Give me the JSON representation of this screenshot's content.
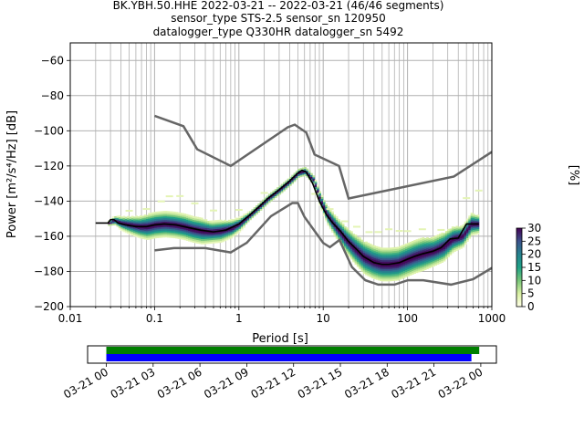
{
  "title_lines": [
    "BK.YBH.50.HHE   2022-03-21 -- 2022-03-21  (46/46 segments)",
    "sensor_type STS-2.5 sensor_sn 120950",
    "datalogger_type Q330HR datalogger_sn 5492"
  ],
  "chart_data": [
    {
      "type": "heatmap",
      "xlabel": "Period [s]",
      "ylabel": "Power [m²/s⁴/Hz] [dB]",
      "xscale": "log",
      "xlim": [
        0.01,
        1000
      ],
      "ylim": [
        -200,
        -50
      ],
      "xticks": [
        {
          "v": 0.01,
          "label": "0.01"
        },
        {
          "v": 0.1,
          "label": "0.1"
        },
        {
          "v": 1,
          "label": "1"
        },
        {
          "v": 10,
          "label": "10"
        },
        {
          "v": 100,
          "label": "100"
        },
        {
          "v": 1000,
          "label": "1000"
        }
      ],
      "yticks": [
        {
          "v": -60,
          "label": "−60"
        },
        {
          "v": -80,
          "label": "−80"
        },
        {
          "v": -100,
          "label": "−100"
        },
        {
          "v": -120,
          "label": "−120"
        },
        {
          "v": -140,
          "label": "−140"
        },
        {
          "v": -160,
          "label": "−160"
        },
        {
          "v": -180,
          "label": "−180"
        },
        {
          "v": -200,
          "label": "−200"
        }
      ],
      "grid": true,
      "colors": {
        "noise_model": "#666666",
        "mode": "#000000",
        "grid": "#b0b0b0"
      },
      "noise_models": [
        {
          "name": "high",
          "x": [
            0.1,
            0.22,
            0.32,
            0.8,
            3.8,
            4.6,
            6.3,
            7.9,
            15.4,
            20,
            354.8,
            1000
          ],
          "y": [
            -91.5,
            -97.4,
            -110.5,
            -120,
            -98,
            -96.5,
            -101,
            -113.5,
            -120,
            -138.5,
            -126,
            -112
          ]
        },
        {
          "name": "low",
          "x": [
            0.1,
            0.17,
            0.4,
            0.8,
            1.24,
            2.4,
            4.3,
            5,
            6,
            10,
            12,
            15.6,
            21.9,
            31.6,
            45,
            70,
            101,
            154,
            328,
            600,
            1000
          ],
          "y": [
            -168,
            -166.7,
            -166.7,
            -169.2,
            -163.7,
            -148.6,
            -141.1,
            -141.1,
            -149,
            -163.8,
            -166.2,
            -162.1,
            -177.5,
            -185,
            -187.5,
            -187.5,
            -185,
            -185,
            -187.5,
            -184.4,
            -178
          ]
        }
      ],
      "mode": {
        "x": [
          0.02,
          0.028,
          0.03,
          0.033,
          0.037,
          0.045,
          0.06,
          0.08,
          0.1,
          0.13,
          0.18,
          0.25,
          0.35,
          0.5,
          0.7,
          1,
          1.3,
          1.7,
          2.2,
          3,
          4,
          5,
          5.6,
          6.3,
          7.5,
          9,
          11,
          13,
          16,
          20,
          25,
          30,
          40,
          50,
          60,
          80,
          100,
          120,
          150,
          200,
          250,
          320,
          400,
          500,
          700
        ],
        "y": [
          -152.5,
          -152.5,
          -150.5,
          -150.5,
          -152.5,
          -153.5,
          -154.5,
          -154.5,
          -153.5,
          -153,
          -153.5,
          -155,
          -156.5,
          -157.5,
          -156.5,
          -153,
          -148.5,
          -143.5,
          -138.5,
          -133.5,
          -128.5,
          -124,
          -122.5,
          -123.5,
          -130,
          -140,
          -148,
          -152.5,
          -157,
          -163,
          -167.5,
          -171.5,
          -175,
          -176,
          -176,
          -175,
          -173,
          -171.5,
          -170,
          -168.5,
          -166.5,
          -161.5,
          -161,
          -153,
          -153
        ]
      },
      "density": {
        "x": [
          0.028,
          0.033,
          0.04,
          0.05,
          0.065,
          0.08,
          0.1,
          0.13,
          0.17,
          0.22,
          0.28,
          0.36,
          0.46,
          0.6,
          0.8,
          1,
          1.3,
          1.7,
          2.2,
          3,
          4,
          5,
          6,
          7.5,
          9,
          11,
          14,
          18,
          23,
          30,
          38,
          48,
          60,
          75,
          95,
          120,
          150,
          200,
          260,
          340,
          440,
          560,
          700
        ],
        "mode": [
          -152.5,
          -151,
          -152.5,
          -153.5,
          -154.5,
          -154.5,
          -153.5,
          -153,
          -153.5,
          -154.5,
          -156,
          -157,
          -157.5,
          -157,
          -155.5,
          -153,
          -148.5,
          -143.5,
          -138.5,
          -133.5,
          -128.5,
          -124,
          -123,
          -128,
          -139,
          -148,
          -155,
          -161.5,
          -167,
          -172,
          -174.5,
          -176,
          -176,
          -175.5,
          -173.5,
          -171.5,
          -170,
          -168.5,
          -166,
          -161.5,
          -160,
          -153,
          -153
        ],
        "spread": [
          1,
          2,
          3,
          4,
          5,
          6,
          6,
          6,
          6,
          6,
          6,
          6,
          5,
          5,
          4,
          3,
          2,
          2,
          2,
          2,
          2,
          2,
          2,
          2,
          3,
          4,
          5,
          6,
          7,
          8,
          8,
          8,
          8,
          8,
          8,
          8,
          8,
          7,
          7,
          6,
          5,
          5,
          4
        ],
        "outlier_offsets": [
          [
            0.05,
            8
          ],
          [
            0.08,
            10
          ],
          [
            0.12,
            13
          ],
          [
            0.15,
            16
          ],
          [
            0.2,
            17
          ],
          [
            0.3,
            15
          ],
          [
            0.5,
            12
          ],
          [
            1,
            8
          ],
          [
            2,
            5
          ],
          [
            8,
            -4
          ],
          [
            12,
            6
          ],
          [
            18,
            10
          ],
          [
            25,
            14
          ],
          [
            35,
            16
          ],
          [
            45,
            18
          ],
          [
            60,
            20
          ],
          [
            80,
            18
          ],
          [
            100,
            16
          ],
          [
            150,
            14
          ],
          [
            250,
            10
          ],
          [
            500,
            18
          ],
          [
            700,
            19
          ]
        ]
      },
      "colorbar": {
        "label": "[%]",
        "vmin": 0,
        "vmax": 30,
        "ticks": [
          {
            "v": 0,
            "label": "0"
          },
          {
            "v": 5,
            "label": "5"
          },
          {
            "v": 10,
            "label": "10"
          },
          {
            "v": 15,
            "label": "15"
          },
          {
            "v": 20,
            "label": "20"
          },
          {
            "v": 25,
            "label": "25"
          },
          {
            "v": 30,
            "label": "30"
          }
        ],
        "colors": [
          "#ffffe5",
          "#d9f0a3",
          "#78c679",
          "#1fa187",
          "#26828e",
          "#3b528b",
          "#440154"
        ]
      }
    },
    {
      "type": "bar",
      "name": "data coverage",
      "xlim_hours": [
        -1.2,
        25
      ],
      "xticks": [
        {
          "v": 0,
          "label": "03-21 00"
        },
        {
          "v": 3,
          "label": "03-21 03"
        },
        {
          "v": 6,
          "label": "03-21 06"
        },
        {
          "v": 9,
          "label": "03-21 09"
        },
        {
          "v": 12,
          "label": "03-21 12"
        },
        {
          "v": 15,
          "label": "03-21 15"
        },
        {
          "v": 18,
          "label": "03-21 18"
        },
        {
          "v": 21,
          "label": "03-21 21"
        },
        {
          "v": 24,
          "label": "03-22 00"
        }
      ],
      "bars": [
        {
          "start_h": 0,
          "end_h": 23.9,
          "color": "#008000"
        },
        {
          "start_h": 0,
          "end_h": 23.4,
          "color": "#0000ff"
        }
      ]
    }
  ]
}
